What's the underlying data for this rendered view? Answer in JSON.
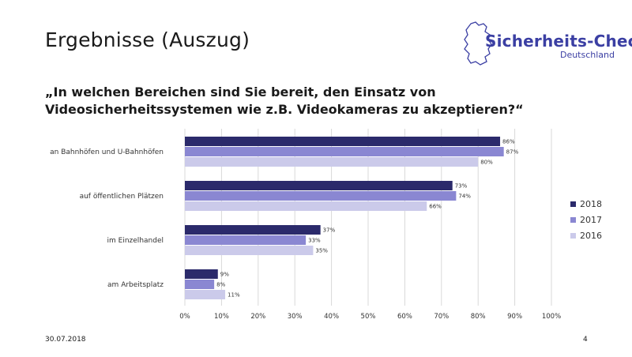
{
  "slide": {
    "title": "Ergebnisse (Auszug)",
    "question": "„In welchen Bereichen sind Sie bereit, den Einsatz von Videosicherheitssystemen wie z.B. Videokameras zu akzeptieren?“",
    "date": "30.07.2018",
    "page_number": "4"
  },
  "logo": {
    "main": "Sicherheits-Check",
    "sub": "Deutschland",
    "color": "#3b3fa3"
  },
  "chart_data": {
    "type": "bar",
    "orientation": "horizontal",
    "categories": [
      "an Bahnhöfen und U-Bahnhöfen",
      "auf öffentlichen Plätzen",
      "im Einzelhandel",
      "am Arbeitsplatz"
    ],
    "series": [
      {
        "name": "2018",
        "values": [
          86,
          73,
          37,
          9
        ],
        "color": "#2b2a6b"
      },
      {
        "name": "2017",
        "values": [
          87,
          74,
          33,
          8
        ],
        "color": "#8a87d2"
      },
      {
        "name": "2016",
        "values": [
          80,
          66,
          35,
          11
        ],
        "color": "#cbcaea"
      }
    ],
    "value_suffix": "%",
    "xlim": [
      0,
      100
    ],
    "xticks": [
      "0%",
      "10%",
      "20%",
      "30%",
      "40%",
      "50%",
      "60%",
      "70%",
      "80%",
      "90%",
      "100%"
    ],
    "grid": true,
    "legend_position": "right",
    "title": "",
    "xlabel": "",
    "ylabel": ""
  }
}
